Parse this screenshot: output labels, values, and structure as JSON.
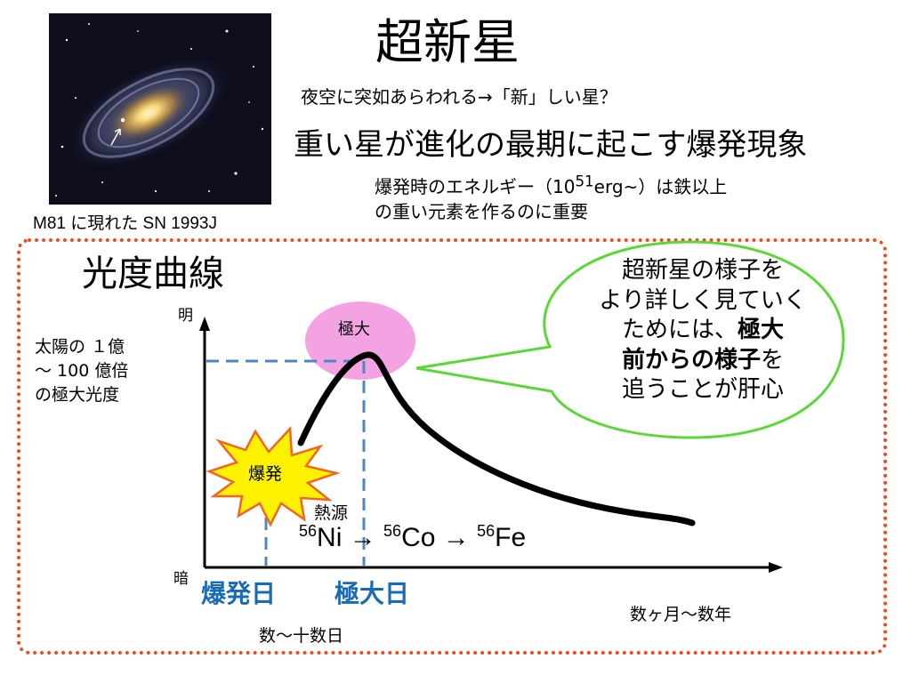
{
  "title": "超新星",
  "subtitle_question": "夜空に突如あらわれる→「新」しい星？",
  "subtitle_main": "重い星が進化の最期に起こす爆発現象",
  "energy_note": {
    "prefix": "爆発時のエネルギー（10",
    "exponent": "51",
    "suffix": "erg~）は鉄以上",
    "line2": "の重い元素を作るのに重要"
  },
  "image_caption": "M81 に現れた SN 1993J",
  "light_curve": {
    "title": "光度曲線",
    "y_top_label": "明",
    "y_bottom_label": "暗",
    "peak_range_line1": "太陽の １億",
    "peak_range_line2": "～ 100 億倍",
    "peak_range_line3": "の極大光度",
    "maximum_label": "極大",
    "explosion_label": "爆発",
    "explosion_day_label": "爆発日",
    "peak_day_label": "極大日",
    "short_interval_label": "数～十数日",
    "long_interval_label": "数ヶ月～数年",
    "heat_source_label": "熱源",
    "decay_chain": {
      "ni_mass": "56",
      "ni": "Ni",
      "arrow1": " → ",
      "co_mass": "56",
      "co": "Co",
      "arrow2": " → ",
      "fe_mass": "56",
      "fe": "Fe"
    }
  },
  "speech_bubble": {
    "line1": "超新星の様子を",
    "line2": "より詳しく見ていく",
    "line3_plain": "ためには、",
    "line3_bold": "極大",
    "line4_bold": "前からの様子",
    "line4_plain": "を",
    "line5": "追うことが肝心"
  },
  "colors": {
    "frame_dots": "#ef4a1c",
    "day_labels": "#1a6bb5",
    "guide_dash": "#4f86c6",
    "bubble_border": "#5dd63a",
    "maximum_blob": "#f3a3e2",
    "burst_fill": "#fff200",
    "burst_stroke": "#f26522"
  }
}
